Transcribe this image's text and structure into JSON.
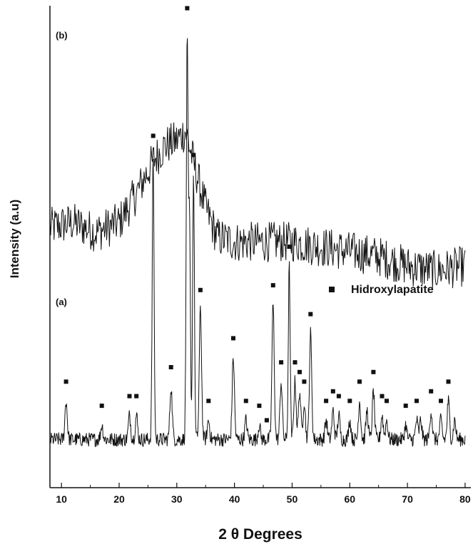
{
  "chart_data": {
    "type": "line",
    "title": "",
    "xlabel": "2 θ  Degrees",
    "ylabel": "Intensity (a.u)",
    "xlim": [
      8,
      81
    ],
    "x_ticks": [
      10,
      20,
      30,
      40,
      50,
      60,
      70,
      80
    ],
    "y_ticks": [],
    "grid": false,
    "legend": {
      "position": "right-middle",
      "marker": "square",
      "label": "Hidroxylapatite"
    },
    "series": [
      {
        "panel_label": "(b)",
        "profile": [
          [
            8,
            0.54
          ],
          [
            12,
            0.55
          ],
          [
            16,
            0.53
          ],
          [
            20,
            0.55
          ],
          [
            23,
            0.61
          ],
          [
            26,
            0.68
          ],
          [
            28,
            0.71
          ],
          [
            30,
            0.72
          ],
          [
            31.5,
            0.74
          ],
          [
            33,
            0.67
          ],
          [
            35,
            0.58
          ],
          [
            37,
            0.52
          ],
          [
            40,
            0.51
          ],
          [
            45,
            0.51
          ],
          [
            50,
            0.51
          ],
          [
            55,
            0.5
          ],
          [
            60,
            0.49
          ],
          [
            65,
            0.48
          ],
          [
            70,
            0.46
          ],
          [
            75,
            0.45
          ],
          [
            80,
            0.46
          ]
        ],
        "noise_amplitude": 0.085
      },
      {
        "panel_label": "(a)",
        "baseline": 0.1,
        "noise_amplitude": 0.03,
        "peaks": [
          [
            10.8,
            0.08
          ],
          [
            17,
            0.03
          ],
          [
            21.8,
            0.05
          ],
          [
            23,
            0.05
          ],
          [
            25.9,
            0.59
          ],
          [
            29,
            0.11
          ],
          [
            31.8,
            0.82
          ],
          [
            32.2,
            0.45
          ],
          [
            32.9,
            0.55
          ],
          [
            34.1,
            0.27
          ],
          [
            35.5,
            0.04
          ],
          [
            39.8,
            0.17
          ],
          [
            42,
            0.04
          ],
          [
            44.3,
            0.03
          ],
          [
            46.7,
            0.28
          ],
          [
            48.1,
            0.12
          ],
          [
            49.5,
            0.36
          ],
          [
            50.5,
            0.12
          ],
          [
            51.3,
            0.1
          ],
          [
            52.1,
            0.08
          ],
          [
            53.2,
            0.22
          ],
          [
            55.9,
            0.04
          ],
          [
            57.1,
            0.06
          ],
          [
            58.1,
            0.05
          ],
          [
            60,
            0.04
          ],
          [
            61.7,
            0.08
          ],
          [
            63,
            0.06
          ],
          [
            64.1,
            0.1
          ],
          [
            65.6,
            0.05
          ],
          [
            66.4,
            0.04
          ],
          [
            69.7,
            0.03
          ],
          [
            71.6,
            0.04
          ],
          [
            72.3,
            0.04
          ],
          [
            74.1,
            0.06
          ],
          [
            75.8,
            0.04
          ],
          [
            77.1,
            0.08
          ],
          [
            78.2,
            0.04
          ]
        ]
      }
    ],
    "markers_x": [
      10.8,
      17,
      21.8,
      23,
      25.9,
      29,
      31.8,
      32.9,
      34.1,
      35.5,
      39.8,
      42,
      44.3,
      45.6,
      46.7,
      48.1,
      49.5,
      50.5,
      51.3,
      52.1,
      53.2,
      55.9,
      57.1,
      58.1,
      60,
      61.7,
      64.1,
      65.6,
      66.4,
      69.7,
      71.6,
      74.1,
      75.8,
      77.1
    ]
  }
}
